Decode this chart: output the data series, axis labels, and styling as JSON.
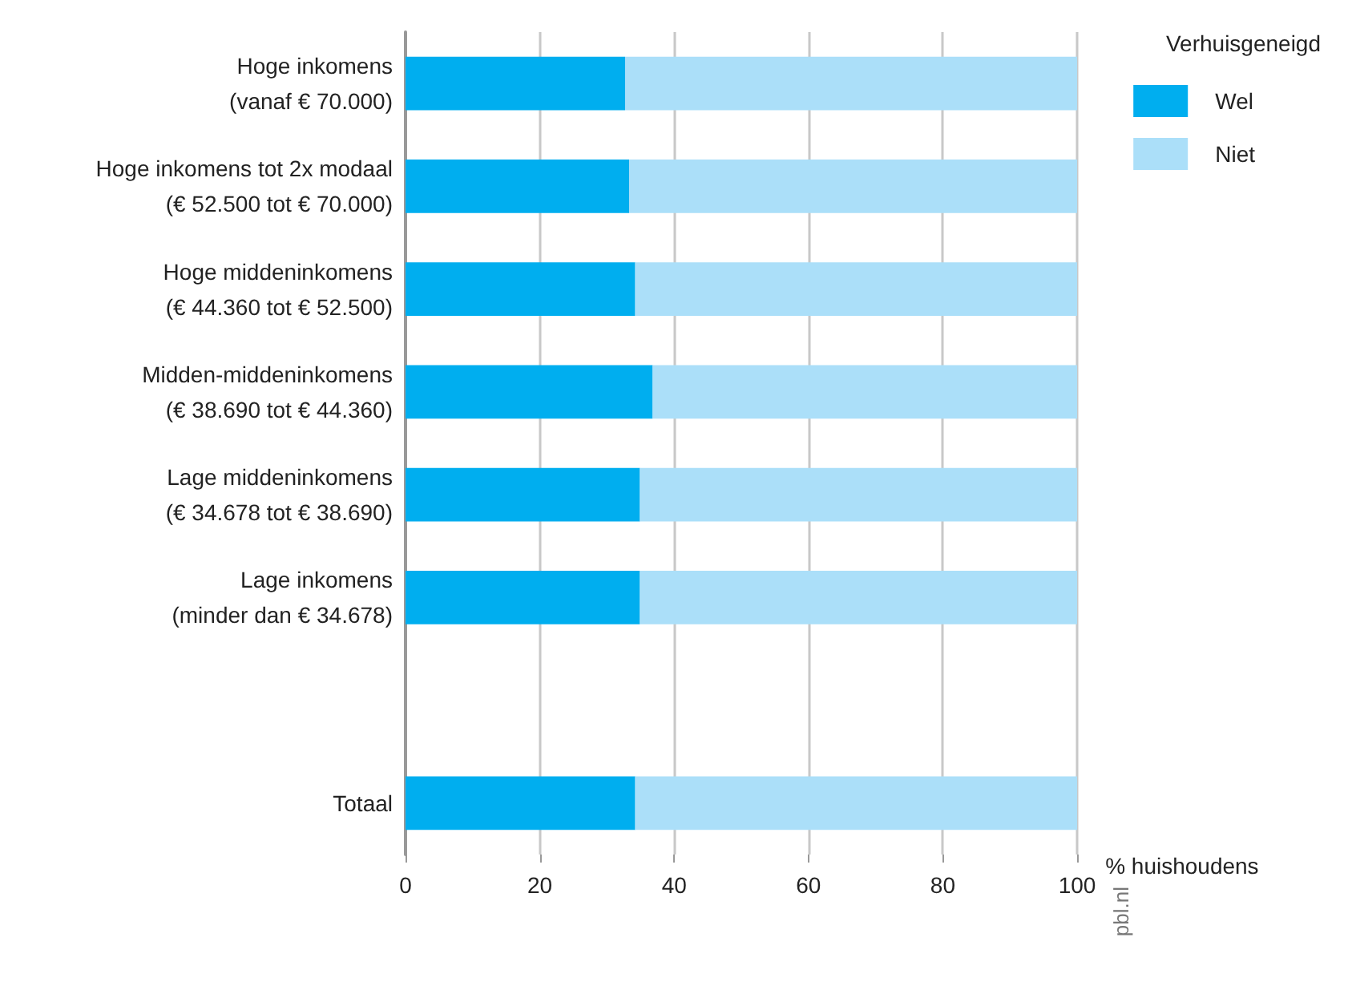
{
  "chart_data": {
    "type": "bar",
    "orientation": "horizontal",
    "stacked": true,
    "categories": [
      "Hoge inkomens\n(vanaf € 70.000)",
      "Hoge inkomens tot 2x modaal\n(€ 52.500 tot € 70.000)",
      "Hoge middeninkomens\n(€ 44.360 tot € 52.500)",
      "Midden-middeninkomens\n(€ 38.690 tot € 44.360)",
      "Lage middeninkomens\n(€ 34.678 tot € 38.690)",
      "Lage inkomens\n(minder dan € 34.678)",
      null,
      "Totaal"
    ],
    "series": [
      {
        "name": "Wel",
        "color": "#00aeef",
        "values": [
          32.7,
          33.3,
          34.2,
          36.8,
          34.9,
          34.9,
          null,
          34.2
        ]
      },
      {
        "name": "Niet",
        "color": "#abdff9",
        "values": [
          67.3,
          66.7,
          65.8,
          63.2,
          65.1,
          65.1,
          null,
          65.8
        ]
      }
    ],
    "xlim": [
      0,
      100
    ],
    "xticks": [
      0,
      20,
      40,
      60,
      80,
      100
    ],
    "xlabel": "% huishoudens",
    "legend_title": "Verhuisgeneigd",
    "legend": "right",
    "grid": "x",
    "annotations": [
      "pbl.nl"
    ]
  }
}
